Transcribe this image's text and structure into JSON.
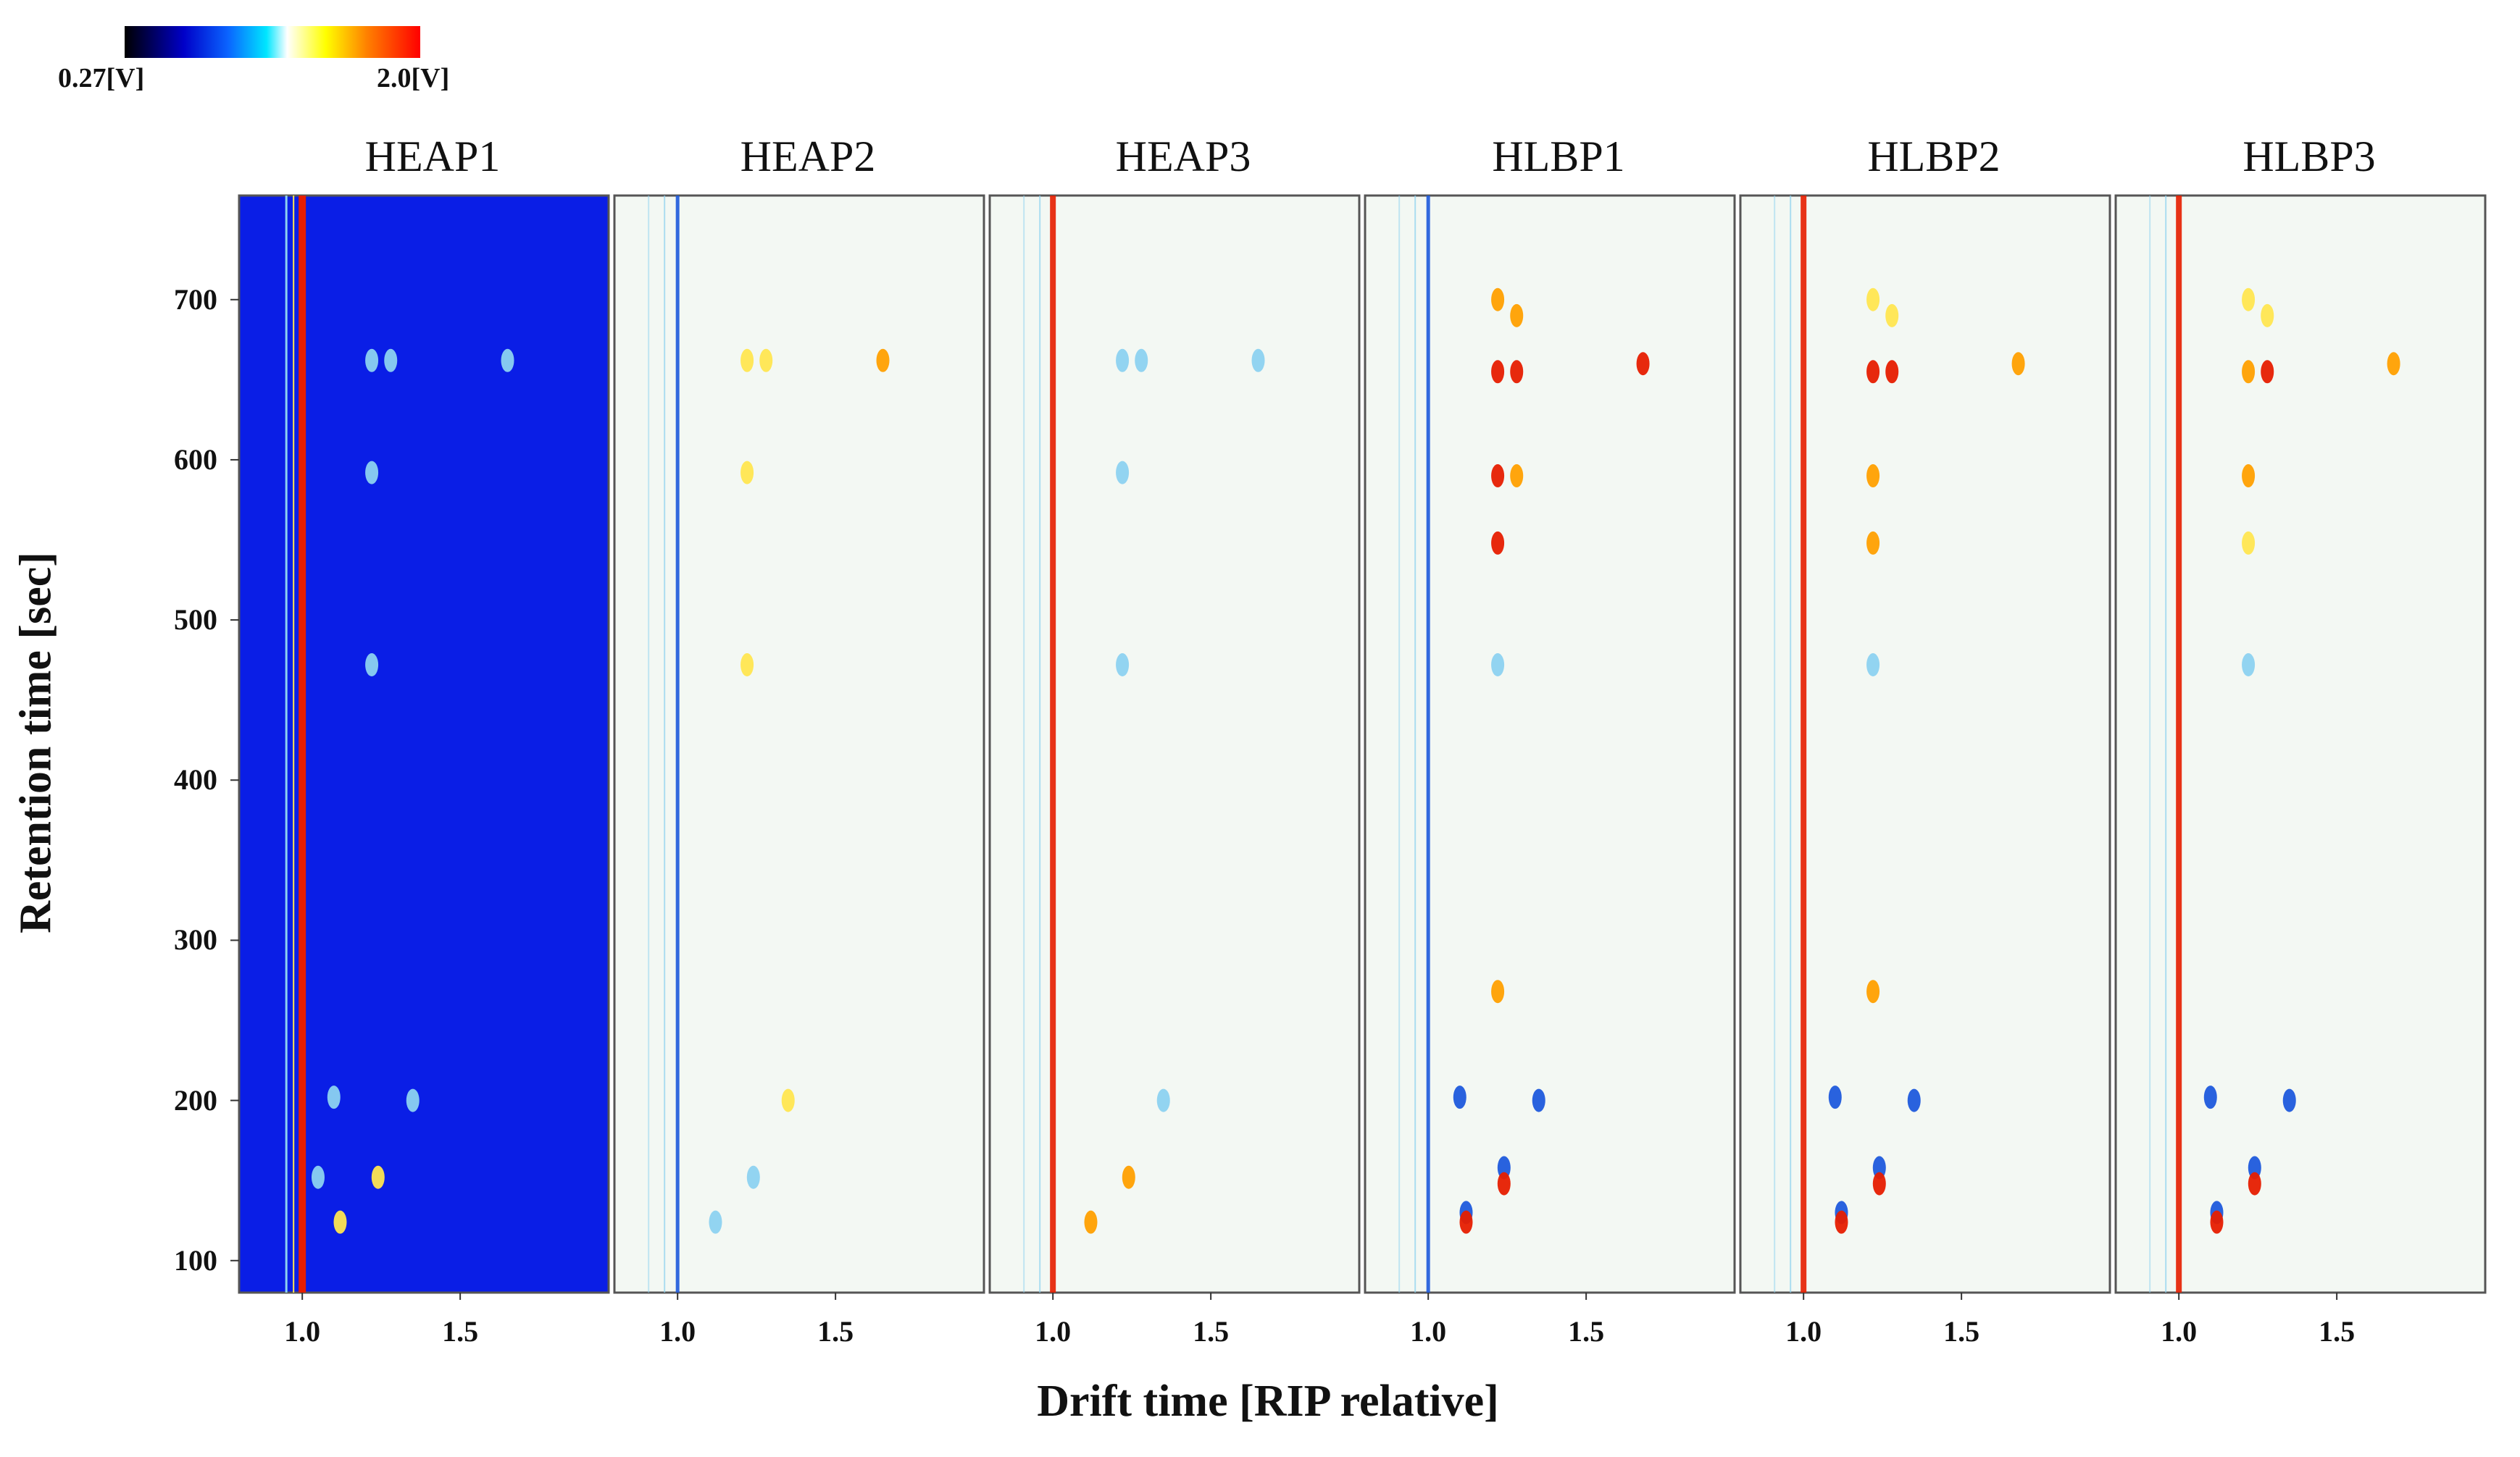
{
  "colorbar": {
    "min_label": "0.27[V]",
    "max_label": "2.0[V]"
  },
  "chart_data": {
    "type": "heatmap",
    "title": "",
    "xlabel": "Drift time [RIP relative]",
    "ylabel": "Retention time [sec]",
    "xlim": [
      0.8,
      1.97
    ],
    "ylim": [
      80,
      765
    ],
    "xticks": [
      1.0,
      1.5
    ],
    "xtick_labels": [
      "1.0",
      "1.5"
    ],
    "yticks": [
      100,
      200,
      300,
      400,
      500,
      600,
      700
    ],
    "ytick_labels": [
      "100",
      "200",
      "300",
      "400",
      "500",
      "600",
      "700"
    ],
    "colors": {
      "background_ref": "#0a1ee6",
      "background_diff": "#f3f8f3",
      "blue": "#1e5adc",
      "red": "#e61e00",
      "orange": "#ffa000",
      "cyan": "#8cd2f0",
      "yellow": "#ffe650"
    },
    "panels": [
      {
        "name": "HEAP1",
        "mode": "reference",
        "peaks": [
          {
            "dt": 1.22,
            "rt": 662,
            "level": "cyan"
          },
          {
            "dt": 1.28,
            "rt": 662,
            "level": "cyan"
          },
          {
            "dt": 1.65,
            "rt": 662,
            "level": "cyan"
          },
          {
            "dt": 1.1,
            "rt": 202,
            "level": "cyan"
          },
          {
            "dt": 1.35,
            "rt": 200,
            "level": "cyan"
          },
          {
            "dt": 1.05,
            "rt": 152,
            "level": "cyan"
          },
          {
            "dt": 1.24,
            "rt": 152,
            "level": "yellow"
          },
          {
            "dt": 1.12,
            "rt": 124,
            "level": "yellow"
          },
          {
            "dt": 1.22,
            "rt": 592,
            "level": "cyan"
          },
          {
            "dt": 1.22,
            "rt": 472,
            "level": "cyan"
          }
        ]
      },
      {
        "name": "HEAP2",
        "mode": "difference",
        "peaks": [
          {
            "dt": 1.22,
            "rt": 662,
            "level": "yellow"
          },
          {
            "dt": 1.28,
            "rt": 662,
            "level": "yellow"
          },
          {
            "dt": 1.65,
            "rt": 662,
            "level": "orange"
          },
          {
            "dt": 1.22,
            "rt": 592,
            "level": "yellow"
          },
          {
            "dt": 1.22,
            "rt": 472,
            "level": "yellow"
          },
          {
            "dt": 1.35,
            "rt": 200,
            "level": "yellow"
          },
          {
            "dt": 1.24,
            "rt": 152,
            "level": "cyan"
          },
          {
            "dt": 1.12,
            "rt": 124,
            "level": "cyan"
          }
        ]
      },
      {
        "name": "HEAP3",
        "mode": "difference",
        "peaks": [
          {
            "dt": 1.22,
            "rt": 662,
            "level": "cyan"
          },
          {
            "dt": 1.28,
            "rt": 662,
            "level": "cyan"
          },
          {
            "dt": 1.65,
            "rt": 662,
            "level": "cyan"
          },
          {
            "dt": 1.22,
            "rt": 592,
            "level": "cyan"
          },
          {
            "dt": 1.22,
            "rt": 472,
            "level": "cyan"
          },
          {
            "dt": 1.35,
            "rt": 200,
            "level": "cyan"
          },
          {
            "dt": 1.24,
            "rt": 152,
            "level": "orange"
          },
          {
            "dt": 1.12,
            "rt": 124,
            "level": "orange"
          }
        ]
      },
      {
        "name": "HLBP1",
        "mode": "difference",
        "peaks": [
          {
            "dt": 1.22,
            "rt": 655,
            "level": "red"
          },
          {
            "dt": 1.28,
            "rt": 655,
            "level": "red"
          },
          {
            "dt": 1.22,
            "rt": 700,
            "level": "orange"
          },
          {
            "dt": 1.28,
            "rt": 690,
            "level": "orange"
          },
          {
            "dt": 1.68,
            "rt": 660,
            "level": "red"
          },
          {
            "dt": 1.22,
            "rt": 590,
            "level": "red"
          },
          {
            "dt": 1.28,
            "rt": 590,
            "level": "orange"
          },
          {
            "dt": 1.22,
            "rt": 548,
            "level": "red"
          },
          {
            "dt": 1.22,
            "rt": 472,
            "level": "cyan"
          },
          {
            "dt": 1.1,
            "rt": 202,
            "level": "blue"
          },
          {
            "dt": 1.35,
            "rt": 200,
            "level": "blue"
          },
          {
            "dt": 1.24,
            "rt": 158,
            "level": "blue"
          },
          {
            "dt": 1.24,
            "rt": 148,
            "level": "red"
          },
          {
            "dt": 1.12,
            "rt": 130,
            "level": "blue"
          },
          {
            "dt": 1.12,
            "rt": 124,
            "level": "red"
          },
          {
            "dt": 1.22,
            "rt": 268,
            "level": "orange"
          }
        ]
      },
      {
        "name": "HLBP2",
        "mode": "difference",
        "peaks": [
          {
            "dt": 1.22,
            "rt": 655,
            "level": "red"
          },
          {
            "dt": 1.28,
            "rt": 655,
            "level": "red"
          },
          {
            "dt": 1.22,
            "rt": 700,
            "level": "yellow"
          },
          {
            "dt": 1.28,
            "rt": 690,
            "level": "yellow"
          },
          {
            "dt": 1.68,
            "rt": 660,
            "level": "orange"
          },
          {
            "dt": 1.22,
            "rt": 590,
            "level": "orange"
          },
          {
            "dt": 1.22,
            "rt": 548,
            "level": "orange"
          },
          {
            "dt": 1.22,
            "rt": 472,
            "level": "cyan"
          },
          {
            "dt": 1.1,
            "rt": 202,
            "level": "blue"
          },
          {
            "dt": 1.35,
            "rt": 200,
            "level": "blue"
          },
          {
            "dt": 1.24,
            "rt": 158,
            "level": "blue"
          },
          {
            "dt": 1.24,
            "rt": 148,
            "level": "red"
          },
          {
            "dt": 1.12,
            "rt": 130,
            "level": "blue"
          },
          {
            "dt": 1.12,
            "rt": 124,
            "level": "red"
          },
          {
            "dt": 1.22,
            "rt": 268,
            "level": "orange"
          }
        ]
      },
      {
        "name": "HLBP3",
        "mode": "difference",
        "peaks": [
          {
            "dt": 1.22,
            "rt": 655,
            "level": "orange"
          },
          {
            "dt": 1.28,
            "rt": 655,
            "level": "red"
          },
          {
            "dt": 1.22,
            "rt": 700,
            "level": "yellow"
          },
          {
            "dt": 1.28,
            "rt": 690,
            "level": "yellow"
          },
          {
            "dt": 1.68,
            "rt": 660,
            "level": "orange"
          },
          {
            "dt": 1.22,
            "rt": 590,
            "level": "orange"
          },
          {
            "dt": 1.22,
            "rt": 548,
            "level": "yellow"
          },
          {
            "dt": 1.22,
            "rt": 472,
            "level": "cyan"
          },
          {
            "dt": 1.1,
            "rt": 202,
            "level": "blue"
          },
          {
            "dt": 1.35,
            "rt": 200,
            "level": "blue"
          },
          {
            "dt": 1.24,
            "rt": 158,
            "level": "blue"
          },
          {
            "dt": 1.24,
            "rt": 148,
            "level": "red"
          },
          {
            "dt": 1.12,
            "rt": 130,
            "level": "blue"
          },
          {
            "dt": 1.12,
            "rt": 124,
            "level": "red"
          }
        ]
      }
    ]
  }
}
